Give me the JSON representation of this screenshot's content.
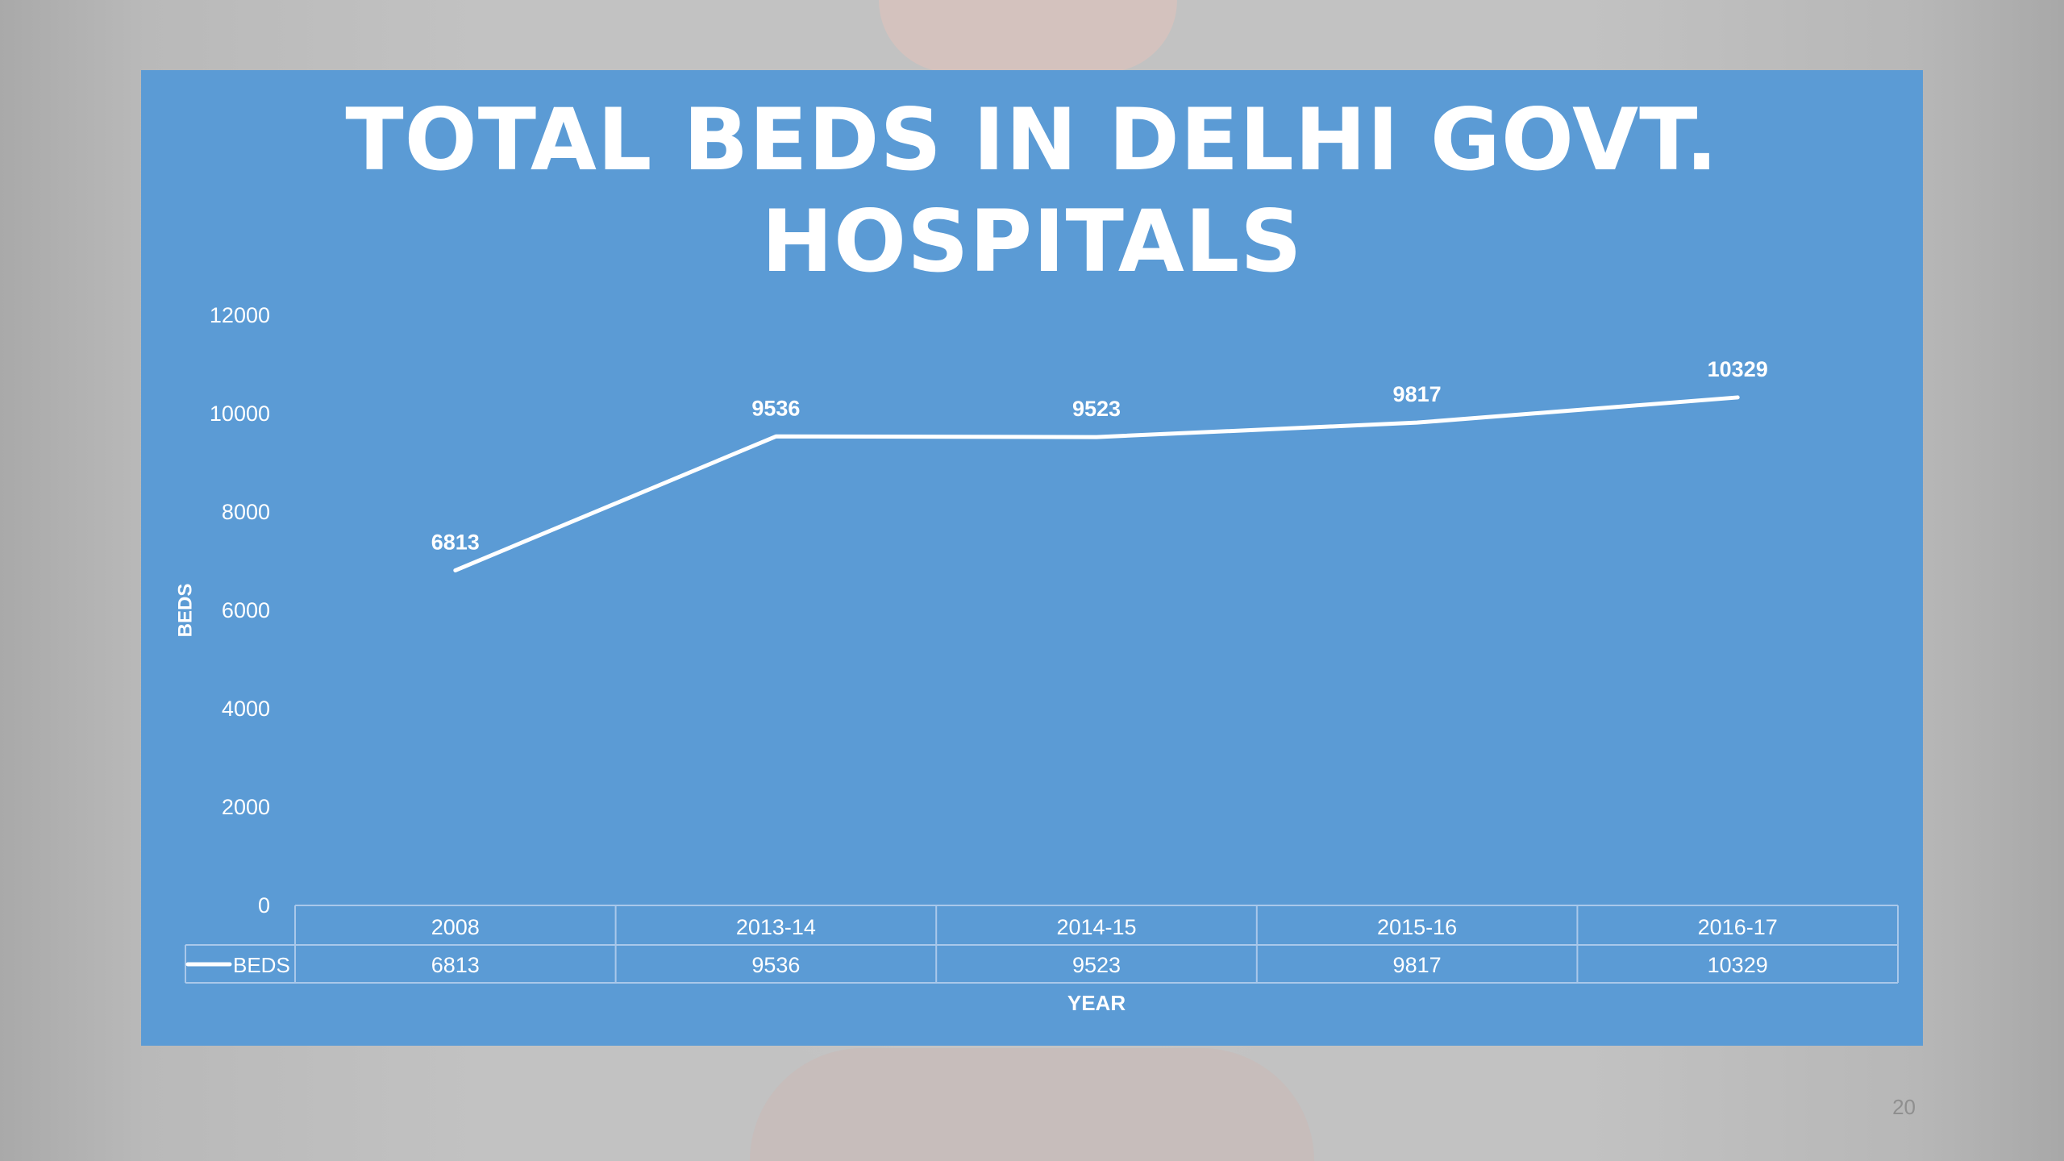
{
  "slide": {
    "page_number": "20"
  },
  "chart_data": {
    "type": "line",
    "title": "TOTAL BEDS IN DELHI GOVT. HOSPITALS",
    "xlabel": "YEAR",
    "ylabel": "BEDS",
    "categories": [
      "2008",
      "2013-14",
      "2014-15",
      "2015-16",
      "2016-17"
    ],
    "series": [
      {
        "name": "BEDS",
        "values": [
          6813,
          9536,
          9523,
          9817,
          10329
        ],
        "color": "#ffffff"
      }
    ],
    "ylim": [
      0,
      12000
    ],
    "yticks": [
      "0",
      "2000",
      "4000",
      "6000",
      "8000",
      "10000",
      "12000"
    ],
    "data_labels": [
      "6813",
      "9536",
      "9523",
      "9817",
      "10329"
    ],
    "data_table": true,
    "grid": false,
    "drop_lines": true,
    "colors": {
      "panel": "#5b9bd5",
      "text": "#ffffff",
      "table_border": "#a9c8ea"
    }
  }
}
